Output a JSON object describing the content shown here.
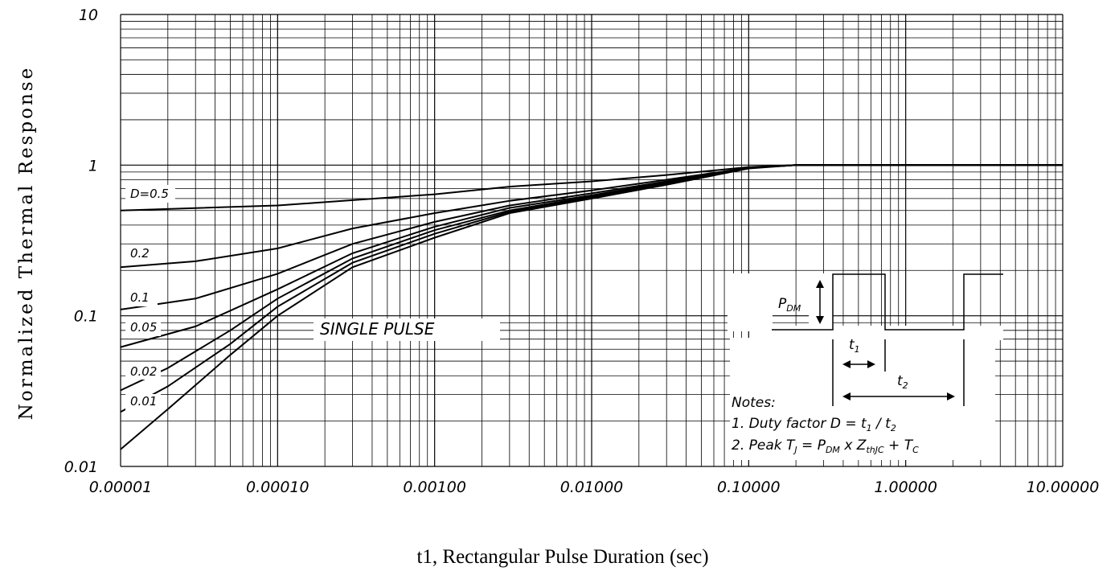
{
  "chart_data": {
    "type": "line",
    "xscale": "log",
    "yscale": "log",
    "xlim": [
      1e-05,
      10
    ],
    "ylim": [
      0.01,
      10
    ],
    "xlabel": "t1, Rectangular Pulse Duration (sec)",
    "ylabel": "Normalized Thermal Response",
    "x_tick_labels": [
      "0.00001",
      "0.00010",
      "0.00100",
      "0.01000",
      "0.10000",
      "1.00000",
      "10.00000"
    ],
    "y_tick_labels": [
      "0.01",
      "0.1",
      "1",
      "10"
    ],
    "grid": true,
    "series": [
      {
        "name": "D=0.5",
        "x": [
          1e-05,
          0.0001,
          0.001,
          0.003,
          0.01,
          0.03,
          0.1,
          0.2,
          10
        ],
        "y": [
          0.5,
          0.54,
          0.64,
          0.72,
          0.78,
          0.86,
          0.97,
          1.0,
          1.0
        ]
      },
      {
        "name": "0.2",
        "x": [
          1e-05,
          3e-05,
          0.0001,
          0.0003,
          0.001,
          0.003,
          0.01,
          0.03,
          0.1,
          0.2,
          10
        ],
        "y": [
          0.21,
          0.23,
          0.28,
          0.38,
          0.48,
          0.58,
          0.68,
          0.8,
          0.96,
          1.0,
          1.0
        ]
      },
      {
        "name": "0.1",
        "x": [
          1e-05,
          3e-05,
          0.0001,
          0.0003,
          0.001,
          0.003,
          0.01,
          0.03,
          0.1,
          0.2,
          10
        ],
        "y": [
          0.11,
          0.13,
          0.19,
          0.3,
          0.42,
          0.54,
          0.65,
          0.78,
          0.96,
          1.0,
          1.0
        ]
      },
      {
        "name": "0.05",
        "x": [
          1e-05,
          3e-05,
          0.0001,
          0.0003,
          0.001,
          0.003,
          0.01,
          0.03,
          0.1,
          0.2,
          10
        ],
        "y": [
          0.062,
          0.085,
          0.15,
          0.26,
          0.39,
          0.52,
          0.63,
          0.77,
          0.96,
          1.0,
          1.0
        ]
      },
      {
        "name": "0.02",
        "x": [
          1e-05,
          2e-05,
          5e-05,
          0.0001,
          0.0003,
          0.001,
          0.003,
          0.01,
          0.03,
          0.1,
          0.2,
          10
        ],
        "y": [
          0.032,
          0.045,
          0.08,
          0.13,
          0.24,
          0.37,
          0.5,
          0.62,
          0.76,
          0.96,
          1.0,
          1.0
        ]
      },
      {
        "name": "0.01",
        "x": [
          1e-05,
          2e-05,
          5e-05,
          0.0001,
          0.0003,
          0.001,
          0.003,
          0.01,
          0.03,
          0.1,
          0.2,
          10
        ],
        "y": [
          0.023,
          0.034,
          0.065,
          0.115,
          0.225,
          0.35,
          0.49,
          0.61,
          0.75,
          0.96,
          1.0,
          1.0
        ]
      },
      {
        "name": "SINGLE PULSE",
        "x": [
          1e-05,
          2e-05,
          5e-05,
          0.0001,
          0.0003,
          0.001,
          0.003,
          0.01,
          0.03,
          0.1,
          0.2,
          10
        ],
        "y": [
          0.013,
          0.024,
          0.055,
          0.1,
          0.21,
          0.33,
          0.48,
          0.6,
          0.74,
          0.95,
          1.0,
          1.0
        ]
      }
    ],
    "curve_labels": [
      "D=0.5",
      "0.2",
      "0.1",
      "0.05",
      "0.02",
      "0.01"
    ],
    "single_pulse_label": "SINGLE PULSE",
    "inset": {
      "pdm_label": "P",
      "pdm_sub": "DM",
      "t1_label": "t",
      "t1_sub": "1",
      "t2_label": "t",
      "t2_sub": "2"
    },
    "notes": {
      "title": "Notes:",
      "line1_pre": "1. Duty factor D = t",
      "line1_sub1": "1",
      "line1_mid": " / t",
      "line1_sub2": "2",
      "line2_pre": "2. Peak T",
      "line2_sub1": "J",
      "line2_mid1": " = P",
      "line2_sub2": "DM",
      "line2_mid2": " x Z",
      "line2_sub3": "thJC",
      "line2_mid3": " + T",
      "line2_sub4": "C"
    }
  }
}
